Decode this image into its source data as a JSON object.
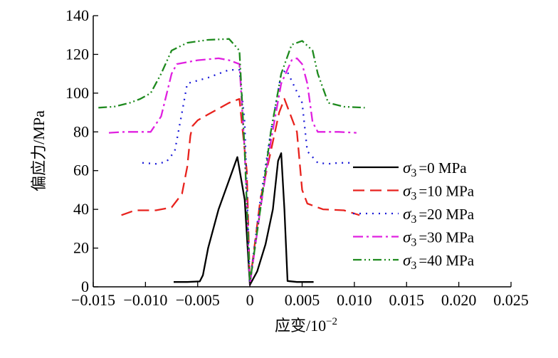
{
  "chart_data": {
    "type": "line",
    "title": "",
    "xlabel": "应变/10",
    "xlabel_exponent": "−2",
    "ylabel": "偏应力/MPa",
    "xlim": [
      -0.015,
      0.025
    ],
    "ylim": [
      0,
      140
    ],
    "x_ticks": [
      -0.015,
      -0.01,
      -0.005,
      0,
      0.005,
      0.01,
      0.015,
      0.02,
      0.025
    ],
    "x_tick_labels": [
      "−0.015",
      "−0.010",
      "−0.005",
      "0",
      "0.005",
      "0.010",
      "0.015",
      "0.020",
      "0.025"
    ],
    "y_ticks": [
      0,
      20,
      40,
      60,
      80,
      100,
      120,
      140
    ],
    "y_tick_labels": [
      "0",
      "20",
      "40",
      "60",
      "80",
      "100",
      "120",
      "140"
    ],
    "grid": false,
    "legend_position": "right",
    "series": [
      {
        "name": "σ3 =0 MPa",
        "legend_symbol": "σ",
        "legend_subscript": "3",
        "legend_text": "=0 MPa",
        "color": "#000000",
        "dash": "solid",
        "x": [
          -0.0073,
          -0.006,
          -0.0048,
          -0.0045,
          -0.004,
          -0.003,
          -0.002,
          -0.0012,
          -0.0005,
          0.0,
          0.0007,
          0.0015,
          0.0022,
          0.0027,
          0.003,
          0.0033,
          0.0036,
          0.0045,
          0.0061
        ],
        "y": [
          2.5,
          2.5,
          2.8,
          6,
          20,
          40,
          55,
          67,
          45,
          1,
          8,
          22,
          40,
          65,
          69,
          40,
          3,
          2.5,
          2.5
        ]
      },
      {
        "name": "σ3 =10 MPa",
        "legend_symbol": "σ",
        "legend_subscript": "3",
        "legend_text": "=10 MPa",
        "color": "#e8221d",
        "dash": "long-dash",
        "x": [
          -0.0123,
          -0.011,
          -0.009,
          -0.0075,
          -0.0065,
          -0.006,
          -0.0057,
          -0.0055,
          -0.005,
          -0.004,
          -0.003,
          -0.002,
          -0.001,
          -0.0003,
          0.0,
          0.001,
          0.002,
          0.0028,
          0.0033,
          0.0045,
          0.005,
          0.0055,
          0.007,
          0.009,
          0.0105
        ],
        "y": [
          37,
          39.5,
          39.5,
          41,
          48,
          62,
          78,
          83,
          86,
          89,
          92,
          95,
          97,
          60,
          2,
          45,
          70,
          90,
          97,
          80,
          50,
          43,
          40,
          39.5,
          37
        ]
      },
      {
        "name": "σ3 =20 MPa",
        "legend_symbol": "σ",
        "legend_subscript": "3",
        "legend_text": "=20 MPa",
        "color": "#1a1ad8",
        "dash": "dotted",
        "x": [
          -0.0103,
          -0.009,
          -0.008,
          -0.0072,
          -0.0065,
          -0.006,
          -0.004,
          -0.002,
          -0.001,
          -0.0005,
          0.0,
          0.001,
          0.002,
          0.003,
          0.0035,
          0.005,
          0.0055,
          0.0065,
          0.0075,
          0.0085,
          0.01
        ],
        "y": [
          64,
          63.5,
          64.5,
          70,
          90,
          105,
          108,
          112,
          112,
          85,
          2,
          45,
          80,
          110,
          112,
          95,
          70,
          64,
          63.5,
          64,
          64
        ]
      },
      {
        "name": "σ3 =30 MPa",
        "legend_symbol": "σ",
        "legend_subscript": "3",
        "legend_text": "=30 MPa",
        "color": "#e020e0",
        "dash": "dash-dot",
        "x": [
          -0.0135,
          -0.012,
          -0.0105,
          -0.0095,
          -0.0085,
          -0.0075,
          -0.007,
          -0.005,
          -0.003,
          -0.002,
          -0.001,
          -0.0005,
          0.0,
          0.001,
          0.002,
          0.003,
          0.004,
          0.0045,
          0.005,
          0.0055,
          0.006,
          0.0065,
          0.0075,
          0.0085,
          0.0102
        ],
        "y": [
          79.5,
          80,
          80,
          80,
          88,
          110,
          115,
          117,
          118,
          117,
          115,
          70,
          1,
          40,
          75,
          105,
          117,
          118,
          115,
          105,
          85,
          80,
          80,
          80,
          79.5
        ]
      },
      {
        "name": "σ3 =40 MPa",
        "legend_symbol": "σ",
        "legend_subscript": "3",
        "legend_text": "=40 MPa",
        "color": "#1e8a1e",
        "dash": "dash-dot-dot",
        "x": [
          -0.0145,
          -0.013,
          -0.0115,
          -0.0105,
          -0.0095,
          -0.0085,
          -0.0075,
          -0.006,
          -0.004,
          -0.002,
          -0.001,
          -0.0005,
          0.0,
          0.001,
          0.002,
          0.003,
          0.004,
          0.005,
          0.006,
          0.0065,
          0.0075,
          0.009,
          0.011
        ],
        "y": [
          92.5,
          93,
          95,
          97,
          100,
          110,
          122,
          126,
          127.5,
          128,
          122,
          70,
          2,
          40,
          80,
          110,
          125,
          127,
          122,
          110,
          95,
          93,
          92.5
        ]
      }
    ]
  }
}
